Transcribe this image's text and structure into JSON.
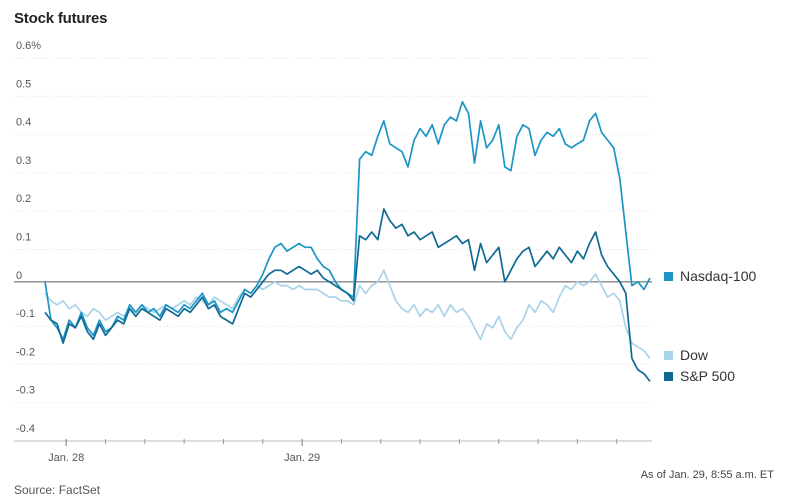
{
  "chart_data": {
    "type": "line",
    "title": "Stock futures",
    "source": "Source: FactSet",
    "note": "As of Jan. 29, 8:55 a.m. ET",
    "ylim": [
      -0.4,
      0.6
    ],
    "yticks": [
      0.6,
      0.5,
      0.4,
      0.3,
      0.2,
      0.1,
      0,
      -0.1,
      -0.2,
      -0.3,
      -0.4
    ],
    "ytick_labels": [
      "0.6%",
      "0.5",
      "0.4",
      "0.3",
      "0.2",
      "0.1",
      "0",
      "-0.1",
      "-0.2",
      "-0.3",
      "-0.4"
    ],
    "xlim": [
      0,
      100
    ],
    "xticks": [
      {
        "x": 3.5,
        "label": "Jan. 28"
      },
      {
        "x": 42.5,
        "label": "Jan. 29"
      }
    ],
    "minor_xticks": [
      10,
      16.5,
      23,
      29.5,
      36,
      49,
      55.5,
      62,
      68.5,
      75,
      81.5,
      88,
      94.5
    ],
    "grid": "horizontal",
    "legend": "right",
    "series": [
      {
        "name": "Nasdaq-100",
        "color": "#1b95c6",
        "x": [
          0,
          1,
          2,
          3,
          4,
          5,
          6,
          7,
          8,
          9,
          10,
          11,
          12,
          13,
          14,
          15,
          16,
          17,
          18,
          19,
          20,
          21,
          22,
          23,
          24,
          25,
          26,
          27,
          28,
          29,
          30,
          31,
          32,
          33,
          34,
          35,
          36,
          37,
          38,
          39,
          40,
          41,
          42,
          43,
          44,
          45,
          46,
          47,
          48,
          49,
          50,
          51,
          52,
          53,
          54,
          55,
          56,
          57,
          58,
          59,
          60,
          61,
          62,
          63,
          64,
          65,
          66,
          67,
          68,
          69,
          70,
          71,
          72,
          73,
          74,
          75,
          76,
          77,
          78,
          79,
          80,
          81,
          82,
          83,
          84,
          85,
          86,
          87,
          88,
          89,
          90,
          91,
          92,
          93,
          94,
          95,
          96,
          97,
          98,
          99,
          100
        ],
        "values": [
          0.0,
          -0.1,
          -0.12,
          -0.15,
          -0.1,
          -0.12,
          -0.08,
          -0.12,
          -0.14,
          -0.1,
          -0.13,
          -0.12,
          -0.09,
          -0.1,
          -0.06,
          -0.08,
          -0.06,
          -0.08,
          -0.07,
          -0.09,
          -0.06,
          -0.07,
          -0.08,
          -0.06,
          -0.07,
          -0.05,
          -0.03,
          -0.06,
          -0.05,
          -0.08,
          -0.07,
          -0.08,
          -0.05,
          -0.02,
          -0.03,
          -0.01,
          0.02,
          0.06,
          0.09,
          0.1,
          0.08,
          0.09,
          0.1,
          0.09,
          0.09,
          0.06,
          0.04,
          0.03,
          0.0,
          -0.02,
          -0.03,
          -0.04,
          0.32,
          0.34,
          0.33,
          0.38,
          0.42,
          0.36,
          0.35,
          0.34,
          0.3,
          0.37,
          0.4,
          0.38,
          0.41,
          0.36,
          0.41,
          0.43,
          0.42,
          0.47,
          0.44,
          0.31,
          0.42,
          0.35,
          0.37,
          0.41,
          0.3,
          0.29,
          0.38,
          0.41,
          0.4,
          0.33,
          0.37,
          0.39,
          0.38,
          0.4,
          0.36,
          0.35,
          0.36,
          0.37,
          0.42,
          0.44,
          0.39,
          0.37,
          0.35,
          0.27,
          0.13,
          -0.01,
          0.0,
          -0.02,
          0.01
        ]
      },
      {
        "name": "Dow",
        "color": "#a9d3ea",
        "x": [
          0,
          1,
          2,
          3,
          4,
          5,
          6,
          7,
          8,
          9,
          10,
          11,
          12,
          13,
          14,
          15,
          16,
          17,
          18,
          19,
          20,
          21,
          22,
          23,
          24,
          25,
          26,
          27,
          28,
          29,
          30,
          31,
          32,
          33,
          34,
          35,
          36,
          37,
          38,
          39,
          40,
          41,
          42,
          43,
          44,
          45,
          46,
          47,
          48,
          49,
          50,
          51,
          52,
          53,
          54,
          55,
          56,
          57,
          58,
          59,
          60,
          61,
          62,
          63,
          64,
          65,
          66,
          67,
          68,
          69,
          70,
          71,
          72,
          73,
          74,
          75,
          76,
          77,
          78,
          79,
          80,
          81,
          82,
          83,
          84,
          85,
          86,
          87,
          88,
          89,
          90,
          91,
          92,
          93,
          94,
          95,
          96,
          97,
          98,
          99,
          100
        ],
        "values": [
          -0.03,
          -0.05,
          -0.06,
          -0.05,
          -0.07,
          -0.06,
          -0.08,
          -0.09,
          -0.07,
          -0.08,
          -0.1,
          -0.09,
          -0.08,
          -0.09,
          -0.07,
          -0.08,
          -0.06,
          -0.07,
          -0.08,
          -0.07,
          -0.06,
          -0.07,
          -0.06,
          -0.05,
          -0.06,
          -0.04,
          -0.05,
          -0.06,
          -0.04,
          -0.05,
          -0.06,
          -0.07,
          -0.04,
          -0.02,
          -0.03,
          -0.01,
          -0.02,
          -0.01,
          0.0,
          -0.01,
          -0.01,
          -0.02,
          -0.01,
          -0.02,
          -0.02,
          -0.02,
          -0.03,
          -0.04,
          -0.04,
          -0.05,
          -0.05,
          -0.06,
          -0.01,
          -0.03,
          -0.01,
          0.0,
          0.03,
          -0.01,
          -0.05,
          -0.07,
          -0.08,
          -0.06,
          -0.09,
          -0.07,
          -0.08,
          -0.06,
          -0.09,
          -0.06,
          -0.08,
          -0.07,
          -0.09,
          -0.12,
          -0.15,
          -0.11,
          -0.12,
          -0.09,
          -0.13,
          -0.15,
          -0.12,
          -0.1,
          -0.06,
          -0.08,
          -0.05,
          -0.06,
          -0.08,
          -0.04,
          -0.01,
          -0.02,
          0.0,
          -0.01,
          0.0,
          0.02,
          -0.01,
          -0.04,
          -0.03,
          -0.05,
          -0.12,
          -0.16,
          -0.17,
          -0.18,
          -0.2
        ]
      },
      {
        "name": "S&P 500",
        "color": "#0f6a93",
        "x": [
          0,
          1,
          2,
          3,
          4,
          5,
          6,
          7,
          8,
          9,
          10,
          11,
          12,
          13,
          14,
          15,
          16,
          17,
          18,
          19,
          20,
          21,
          22,
          23,
          24,
          25,
          26,
          27,
          28,
          29,
          30,
          31,
          32,
          33,
          34,
          35,
          36,
          37,
          38,
          39,
          40,
          41,
          42,
          43,
          44,
          45,
          46,
          47,
          48,
          49,
          50,
          51,
          52,
          53,
          54,
          55,
          56,
          57,
          58,
          59,
          60,
          61,
          62,
          63,
          64,
          65,
          66,
          67,
          68,
          69,
          70,
          71,
          72,
          73,
          74,
          75,
          76,
          77,
          78,
          79,
          80,
          81,
          82,
          83,
          84,
          85,
          86,
          87,
          88,
          89,
          90,
          91,
          92,
          93,
          94,
          95,
          96,
          97,
          98,
          99,
          100
        ],
        "values": [
          -0.08,
          -0.1,
          -0.11,
          -0.16,
          -0.11,
          -0.12,
          -0.09,
          -0.13,
          -0.15,
          -0.11,
          -0.14,
          -0.12,
          -0.1,
          -0.11,
          -0.07,
          -0.09,
          -0.07,
          -0.08,
          -0.09,
          -0.1,
          -0.07,
          -0.08,
          -0.09,
          -0.07,
          -0.08,
          -0.06,
          -0.04,
          -0.07,
          -0.06,
          -0.09,
          -0.1,
          -0.11,
          -0.07,
          -0.03,
          -0.04,
          -0.02,
          0.0,
          0.02,
          0.03,
          0.03,
          0.02,
          0.03,
          0.04,
          0.03,
          0.02,
          0.03,
          0.01,
          0.0,
          -0.01,
          -0.02,
          -0.03,
          -0.05,
          0.12,
          0.11,
          0.13,
          0.11,
          0.19,
          0.16,
          0.14,
          0.15,
          0.12,
          0.13,
          0.11,
          0.12,
          0.13,
          0.09,
          0.1,
          0.11,
          0.12,
          0.1,
          0.11,
          0.03,
          0.1,
          0.05,
          0.07,
          0.09,
          0.0,
          0.03,
          0.06,
          0.08,
          0.09,
          0.04,
          0.06,
          0.08,
          0.06,
          0.09,
          0.07,
          0.05,
          0.08,
          0.06,
          0.1,
          0.13,
          0.07,
          0.04,
          0.02,
          0.0,
          -0.03,
          -0.2,
          -0.23,
          -0.24,
          -0.26
        ]
      }
    ]
  }
}
